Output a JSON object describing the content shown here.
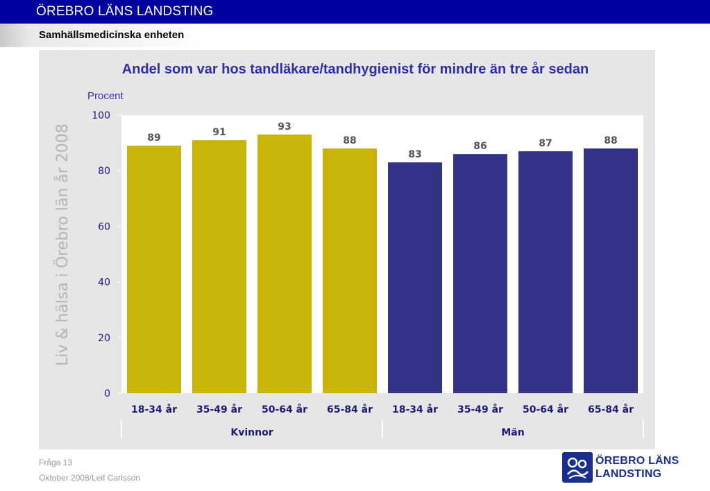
{
  "header": {
    "organization": "ÖREBRO LÄNS LANDSTING",
    "unit": "Samhällsmedicinska enheten"
  },
  "side_label": "Liv & hälsa i Örebro län år 2008",
  "footer": {
    "question": "Fråga 13",
    "date_author": "Oktober 2008/Leif Carlsson"
  },
  "logo": {
    "line1": "ÖREBRO LÄNS",
    "line2": "LANDSTING"
  },
  "colors": {
    "kvinnor": "#c9b40a",
    "man": "#333387",
    "title": "#2e2eaa",
    "tick_label": "#1a1a7a"
  },
  "chart_data": {
    "type": "bar",
    "title": "Andel som var hos tandläkare/tandhygienist för mindre än tre år sedan",
    "ylabel": "Procent",
    "ylim": [
      0,
      100
    ],
    "yticks": [
      0,
      20,
      40,
      60,
      80,
      100
    ],
    "grid": false,
    "categories": [
      "18-34 år",
      "35-49 år",
      "50-64 år",
      "65-84 år",
      "18-34 år",
      "35-49 år",
      "50-64 år",
      "65-84 år"
    ],
    "groups": [
      {
        "name": "Kvinnor",
        "count": 4
      },
      {
        "name": "Män",
        "count": 4
      }
    ],
    "values": [
      89,
      91,
      93,
      88,
      83,
      86,
      87,
      88
    ],
    "bar_colors": [
      "#c9b40a",
      "#c9b40a",
      "#c9b40a",
      "#c9b40a",
      "#333387",
      "#333387",
      "#333387",
      "#333387"
    ]
  }
}
